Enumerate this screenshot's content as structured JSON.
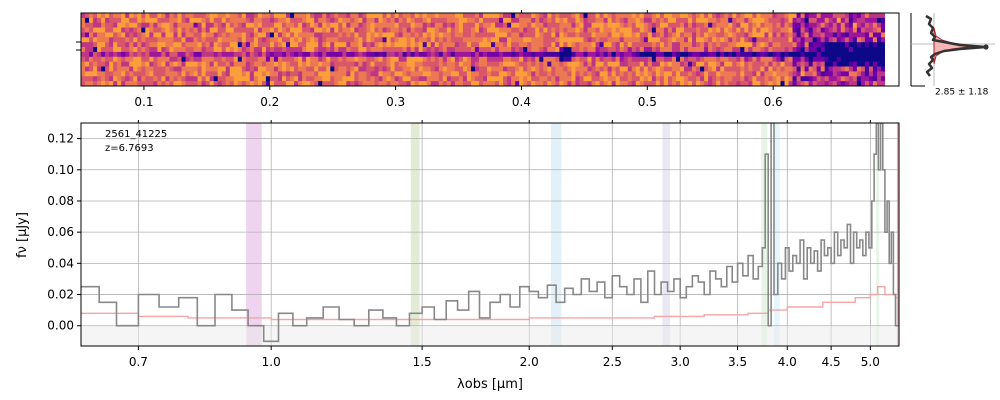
{
  "chart_data": [
    {
      "type": "heatmap",
      "panel": "2d-spectrum",
      "xlim": [
        0.05,
        0.7
      ],
      "x_ticks": [
        "0.1",
        "0.2",
        "0.3",
        "0.4",
        "0.5",
        "0.6"
      ],
      "x_tick_values": [
        0.1,
        0.2,
        0.3,
        0.4,
        0.5,
        0.6
      ],
      "colormap": "plasma"
    },
    {
      "type": "line",
      "panel": "profile",
      "annotation": "2.85 ± 1.18",
      "profile_color": "#333333",
      "fit_color": "#b22222"
    },
    {
      "type": "line",
      "panel": "1d-spectrum",
      "labels": [
        "2561_41225",
        "z=6.7693"
      ],
      "xlabel": "λobs [μm]",
      "ylabel": "fν [μJy]",
      "xlim": [
        0.6,
        5.4
      ],
      "ylim": [
        -0.013,
        0.13
      ],
      "grid": true,
      "x_ticks": [
        "0.7",
        "1.0",
        "1.5",
        "2.0",
        "2.5",
        "3.0",
        "3.5",
        "4.0",
        "4.5",
        "5.0"
      ],
      "x_tick_values": [
        0.7,
        1.0,
        1.5,
        2.0,
        2.5,
        3.0,
        3.5,
        4.0,
        4.5,
        5.0
      ],
      "y_ticks": [
        "0.00",
        "0.02",
        "0.04",
        "0.06",
        "0.08",
        "0.10",
        "0.12"
      ],
      "y_tick_values": [
        0.0,
        0.02,
        0.04,
        0.06,
        0.08,
        0.1,
        0.12
      ],
      "shaded_bands": [
        {
          "x": [
            0.935,
            0.975
          ],
          "color": "#e3b8e3"
        },
        {
          "x": [
            1.455,
            1.49
          ],
          "color": "#cfe0b8"
        },
        {
          "x": [
            2.12,
            2.18
          ],
          "color": "#cfe6f5"
        },
        {
          "x": [
            2.86,
            2.92
          ],
          "color": "#dcd8ee"
        },
        {
          "x": [
            3.73,
            3.79
          ],
          "color": "#d8ecd8"
        },
        {
          "x": [
            3.86,
            3.92
          ],
          "color": "#d6ecf8"
        },
        {
          "x": [
            5.08,
            5.12
          ],
          "color": "#d8ecd8"
        },
        {
          "x": [
            5.37,
            5.42
          ],
          "color": "#d9707a"
        }
      ],
      "series": [
        {
          "color": "#888888",
          "x": [
            0.6,
            0.63,
            0.66,
            0.7,
            0.74,
            0.78,
            0.82,
            0.86,
            0.9,
            0.94,
            0.98,
            1.02,
            1.06,
            1.1,
            1.15,
            1.2,
            1.25,
            1.3,
            1.35,
            1.4,
            1.45,
            1.5,
            1.55,
            1.6,
            1.65,
            1.7,
            1.75,
            1.8,
            1.85,
            1.9,
            1.95,
            2.0,
            2.05,
            2.1,
            2.15,
            2.2,
            2.25,
            2.3,
            2.35,
            2.4,
            2.45,
            2.5,
            2.55,
            2.6,
            2.65,
            2.7,
            2.75,
            2.8,
            2.85,
            2.9,
            2.95,
            3.0,
            3.05,
            3.1,
            3.15,
            3.2,
            3.25,
            3.3,
            3.35,
            3.4,
            3.45,
            3.5,
            3.55,
            3.6,
            3.65,
            3.7,
            3.74,
            3.77,
            3.8,
            3.83,
            3.86,
            3.9,
            3.94,
            3.98,
            4.02,
            4.06,
            4.1,
            4.14,
            4.18,
            4.22,
            4.26,
            4.3,
            4.34,
            4.38,
            4.42,
            4.46,
            4.5,
            4.54,
            4.58,
            4.62,
            4.66,
            4.7,
            4.74,
            4.78,
            4.82,
            4.86,
            4.9,
            4.94,
            4.98,
            5.02,
            5.05,
            5.08,
            5.11,
            5.14,
            5.17,
            5.2,
            5.23,
            5.26,
            5.29,
            5.32,
            5.35
          ],
          "y": [
            0.025,
            0.015,
            0.0,
            0.02,
            0.012,
            0.018,
            0.0,
            0.02,
            0.01,
            0.0,
            -0.01,
            0.008,
            0.0,
            0.005,
            0.012,
            0.004,
            0.0,
            0.01,
            0.005,
            0.0,
            0.008,
            0.012,
            0.004,
            0.016,
            0.01,
            0.022,
            0.005,
            0.015,
            0.02,
            0.012,
            0.025,
            0.022,
            0.018,
            0.026,
            0.015,
            0.024,
            0.02,
            0.03,
            0.022,
            0.028,
            0.018,
            0.032,
            0.025,
            0.02,
            0.03,
            0.015,
            0.035,
            0.02,
            0.028,
            0.022,
            0.03,
            0.018,
            0.025,
            0.032,
            0.028,
            0.02,
            0.035,
            0.03,
            0.025,
            0.038,
            0.028,
            0.04,
            0.032,
            0.045,
            0.03,
            0.038,
            0.05,
            0.11,
            0.0,
            0.13,
            0.02,
            0.04,
            0.03,
            0.05,
            0.035,
            0.045,
            0.04,
            0.055,
            0.03,
            0.05,
            0.04,
            0.048,
            0.035,
            0.055,
            0.045,
            0.05,
            0.04,
            0.06,
            0.045,
            0.055,
            0.05,
            0.065,
            0.04,
            0.06,
            0.05,
            0.055,
            0.045,
            0.06,
            0.05,
            0.08,
            0.11,
            0.13,
            0.1,
            0.13,
            0.1,
            0.06,
            0.08,
            0.04,
            0.06,
            0.02,
            0.0
          ]
        },
        {
          "color": "#f4a6a6",
          "x": [
            0.6,
            0.7,
            0.8,
            0.9,
            1.0,
            1.2,
            1.4,
            1.6,
            1.8,
            2.0,
            2.4,
            2.8,
            3.2,
            3.6,
            3.8,
            4.0,
            4.4,
            4.8,
            5.0,
            5.1,
            5.2,
            5.35
          ],
          "y": [
            0.008,
            0.006,
            0.005,
            0.005,
            0.004,
            0.004,
            0.004,
            0.004,
            0.004,
            0.005,
            0.005,
            0.006,
            0.007,
            0.008,
            0.01,
            0.012,
            0.015,
            0.018,
            0.02,
            0.025,
            0.02,
            0.018
          ]
        }
      ]
    }
  ]
}
